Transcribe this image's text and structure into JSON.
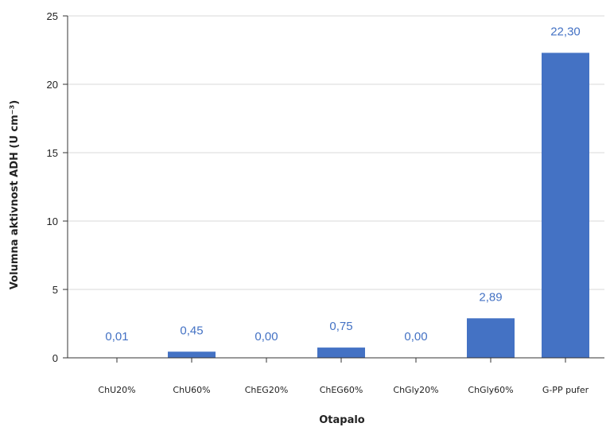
{
  "chart_data": {
    "type": "bar",
    "categories": [
      "ChU20%",
      "ChU60%",
      "ChEG20%",
      "ChEG60%",
      "ChGly20%",
      "ChGly60%",
      "G-PP pufer"
    ],
    "values": [
      0.01,
      0.45,
      0.0,
      0.75,
      0.0,
      2.89,
      22.3
    ],
    "data_labels": [
      "0,01",
      "0,45",
      "0,00",
      "0,75",
      "0,00",
      "2,89",
      "22,30"
    ],
    "xlabel": "Otapalo",
    "ylabel": "Volumna aktivnost ADH (U cm⁻³)",
    "ylim": [
      0,
      25
    ],
    "yticks": [
      0,
      5,
      10,
      15,
      20,
      25
    ],
    "grid": true,
    "bar_color": "#4472c4",
    "label_color": "#4472c4"
  }
}
